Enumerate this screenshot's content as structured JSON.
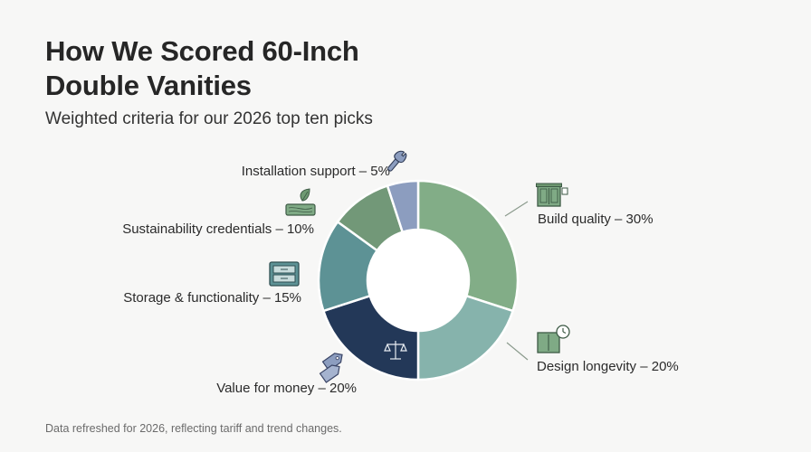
{
  "header": {
    "title_line1": "How We Scored 60-Inch",
    "title_line2": "Double Vanities",
    "subtitle": "Weighted criteria for our 2026 top ten picks"
  },
  "footer": {
    "note": "Data refreshed for 2026, reflecting tariff and trend changes."
  },
  "chart_data": {
    "type": "pie",
    "title": "How We Scored 60-Inch Double Vanities",
    "subtitle": "Weighted criteria for our 2026 top ten picks",
    "donut": true,
    "slices": [
      {
        "label": "Build quality – 30%",
        "name": "Build quality",
        "value": 30,
        "color": "#82ad87",
        "icon": "vanity-cabinet-icon"
      },
      {
        "label": "Design longevity – 20%",
        "name": "Design longevity",
        "value": 20,
        "color": "#86b3ac",
        "icon": "clock-cabinet-icon"
      },
      {
        "label": "Value for money – 20%",
        "name": "Value for money",
        "value": 20,
        "color": "#233858",
        "icon": "scale-icon"
      },
      {
        "label": "Storage & functionality – 15%",
        "name": "Storage & functionality",
        "value": 15,
        "color": "#5d9295",
        "icon": "drawer-icon"
      },
      {
        "label": "Sustainability credentials – 10%",
        "name": "Sustainability credentials",
        "value": 10,
        "color": "#729878",
        "icon": "leaf-wood-icon"
      },
      {
        "label": "Installation support – 5%",
        "name": "Installation support",
        "value": 5,
        "color": "#8c9dbf",
        "icon": "wrench-icon"
      }
    ],
    "extra_icons": [
      "price-tag-icon"
    ]
  }
}
